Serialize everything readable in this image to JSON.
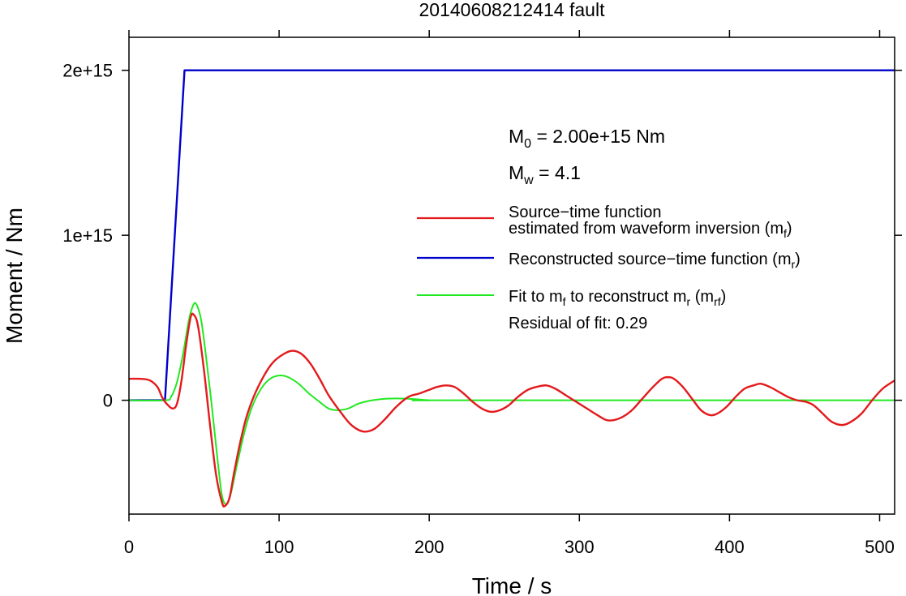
{
  "chart_data": {
    "type": "line",
    "title": "20140608212414 fault",
    "xlabel": "Time / s",
    "ylabel": "Moment / Nm",
    "xlim": [
      0,
      510
    ],
    "ylim": [
      -690000000000000.0,
      2200000000000000.0
    ],
    "x_ticks": [
      {
        "value": 0,
        "label": "0"
      },
      {
        "value": 100,
        "label": "100"
      },
      {
        "value": 200,
        "label": "200"
      },
      {
        "value": 300,
        "label": "300"
      },
      {
        "value": 400,
        "label": "400"
      },
      {
        "value": 500,
        "label": "500"
      }
    ],
    "y_ticks": [
      {
        "value": 0,
        "label": "0"
      },
      {
        "value": 1000000000000000.0,
        "label": "1e+15"
      },
      {
        "value": 2000000000000000.0,
        "label": "2e+15"
      }
    ],
    "annotations": {
      "m0_prefix": "M",
      "m0_sub": "0",
      "m0_rest": " = 2.00e+15 Nm",
      "mw_prefix": "M",
      "mw_sub": "w",
      "mw_rest": " = 4.1",
      "residual": "Residual of fit: 0.29"
    },
    "legend": {
      "placement": "right",
      "items": [
        {
          "series": "mf",
          "line1": "Source−time function",
          "line2_pre": "estimated from waveform inversion (m",
          "line2_sub": "f",
          "line2_post": ")"
        },
        {
          "series": "mr",
          "line1_pre": "Reconstructed source−time function (m",
          "line1_sub": "r",
          "line1_post": ")"
        },
        {
          "series": "mrf",
          "line1_pre": "Fit to m",
          "line1_sub": "f",
          "line1_mid": " to reconstruct m",
          "line1_sub2": "r",
          "line1_mid2": " (m",
          "line1_sub3": "rf",
          "line1_post": ")"
        }
      ]
    },
    "series": [
      {
        "key": "mf",
        "color": "#e31a1c",
        "points": [
          [
            0,
            130000000000000.0
          ],
          [
            8,
            130000000000000.0
          ],
          [
            14,
            120000000000000.0
          ],
          [
            19,
            80000000000000.0
          ],
          [
            22,
            20000000000000.0
          ],
          [
            25,
            -20000000000000.0
          ],
          [
            29,
            -50000000000000.0
          ],
          [
            32,
            -20000000000000.0
          ],
          [
            35,
            120000000000000.0
          ],
          [
            38,
            330000000000000.0
          ],
          [
            41,
            500000000000000.0
          ],
          [
            43,
            520000000000000.0
          ],
          [
            46,
            450000000000000.0
          ],
          [
            50,
            180000000000000.0
          ],
          [
            54,
            -150000000000000.0
          ],
          [
            58,
            -450000000000000.0
          ],
          [
            62,
            -620000000000000.0
          ],
          [
            64,
            -640000000000000.0
          ],
          [
            67,
            -590000000000000.0
          ],
          [
            70,
            -440000000000000.0
          ],
          [
            74,
            -260000000000000.0
          ],
          [
            78,
            -110000000000000.0
          ],
          [
            83,
            20000000000000.0
          ],
          [
            90,
            150000000000000.0
          ],
          [
            96,
            230000000000000.0
          ],
          [
            103,
            280000000000000.0
          ],
          [
            109,
            300000000000000.0
          ],
          [
            115,
            280000000000000.0
          ],
          [
            121,
            220000000000000.0
          ],
          [
            127,
            130000000000000.0
          ],
          [
            133,
            30000000000000.0
          ],
          [
            140,
            -60000000000000.0
          ],
          [
            147,
            -140000000000000.0
          ],
          [
            153,
            -180000000000000.0
          ],
          [
            158,
            -190000000000000.0
          ],
          [
            164,
            -170000000000000.0
          ],
          [
            171,
            -110000000000000.0
          ],
          [
            178,
            -40000000000000.0
          ],
          [
            186,
            20000000000000.0
          ],
          [
            193,
            40000000000000.0
          ],
          [
            199,
            60000000000000.0
          ],
          [
            205,
            80000000000000.0
          ],
          [
            211,
            90000000000000.0
          ],
          [
            217,
            80000000000000.0
          ],
          [
            223,
            40000000000000.0
          ],
          [
            229,
            -10000000000000.0
          ],
          [
            235,
            -50000000000000.0
          ],
          [
            241,
            -70000000000000.0
          ],
          [
            247,
            -60000000000000.0
          ],
          [
            253,
            -30000000000000.0
          ],
          [
            259,
            20000000000000.0
          ],
          [
            265,
            60000000000000.0
          ],
          [
            271,
            80000000000000.0
          ],
          [
            278,
            90000000000000.0
          ],
          [
            284,
            70000000000000.0
          ],
          [
            291,
            30000000000000.0
          ],
          [
            298,
            -10000000000000.0
          ],
          [
            305,
            -50000000000000.0
          ],
          [
            312,
            -90000000000000.0
          ],
          [
            318,
            -120000000000000.0
          ],
          [
            323,
            -120000000000000.0
          ],
          [
            329,
            -100000000000000.0
          ],
          [
            335,
            -60000000000000.0
          ],
          [
            342,
            10000000000000.0
          ],
          [
            349,
            80000000000000.0
          ],
          [
            355,
            130000000000000.0
          ],
          [
            359,
            140000000000000.0
          ],
          [
            363,
            130000000000000.0
          ],
          [
            369,
            80000000000000.0
          ],
          [
            375,
            10000000000000.0
          ],
          [
            381,
            -60000000000000.0
          ],
          [
            387,
            -90000000000000.0
          ],
          [
            392,
            -80000000000000.0
          ],
          [
            398,
            -40000000000000.0
          ],
          [
            404,
            20000000000000.0
          ],
          [
            410,
            70000000000000.0
          ],
          [
            416,
            90000000000000.0
          ],
          [
            421,
            100000000000000.0
          ],
          [
            427,
            80000000000000.0
          ],
          [
            433,
            50000000000000.0
          ],
          [
            439,
            20000000000000.0
          ],
          [
            445,
            0
          ],
          [
            451,
            -10000000000000.0
          ],
          [
            456,
            -30000000000000.0
          ],
          [
            462,
            -80000000000000.0
          ],
          [
            468,
            -130000000000000.0
          ],
          [
            475,
            -150000000000000.0
          ],
          [
            481,
            -130000000000000.0
          ],
          [
            488,
            -80000000000000.0
          ],
          [
            495,
            0
          ],
          [
            502,
            70000000000000.0
          ],
          [
            510,
            120000000000000.0
          ]
        ]
      },
      {
        "key": "mr",
        "color": "#0000cc",
        "points": [
          [
            0,
            0
          ],
          [
            24,
            0
          ],
          [
            37,
            2000000000000000.0
          ],
          [
            510,
            2000000000000000.0
          ]
        ]
      },
      {
        "key": "mrf",
        "color": "#22e822",
        "points": [
          [
            0,
            0
          ],
          [
            24,
            0
          ],
          [
            28,
            20000000000000.0
          ],
          [
            32,
            110000000000000.0
          ],
          [
            36,
            280000000000000.0
          ],
          [
            40,
            490000000000000.0
          ],
          [
            43,
            580000000000000.0
          ],
          [
            45,
            580000000000000.0
          ],
          [
            48,
            490000000000000.0
          ],
          [
            51,
            290000000000000.0
          ],
          [
            55,
            -20000000000000.0
          ],
          [
            59,
            -360000000000000.0
          ],
          [
            62,
            -580000000000000.0
          ],
          [
            65,
            -630000000000000.0
          ],
          [
            68,
            -560000000000000.0
          ],
          [
            72,
            -390000000000000.0
          ],
          [
            77,
            -190000000000000.0
          ],
          [
            82,
            -40000000000000.0
          ],
          [
            88,
            70000000000000.0
          ],
          [
            94,
            130000000000000.0
          ],
          [
            100,
            150000000000000.0
          ],
          [
            106,
            140000000000000.0
          ],
          [
            113,
            100000000000000.0
          ],
          [
            120,
            40000000000000.0
          ],
          [
            127,
            -10000000000000.0
          ],
          [
            133,
            -50000000000000.0
          ],
          [
            139,
            -60000000000000.0
          ],
          [
            146,
            -50000000000000.0
          ],
          [
            153,
            -20000000000000.0
          ],
          [
            162,
            0
          ],
          [
            172,
            10000000000000.0
          ],
          [
            185,
            10000000000000.0
          ],
          [
            200,
            0
          ],
          [
            215,
            0
          ],
          [
            510,
            0
          ]
        ]
      }
    ]
  }
}
